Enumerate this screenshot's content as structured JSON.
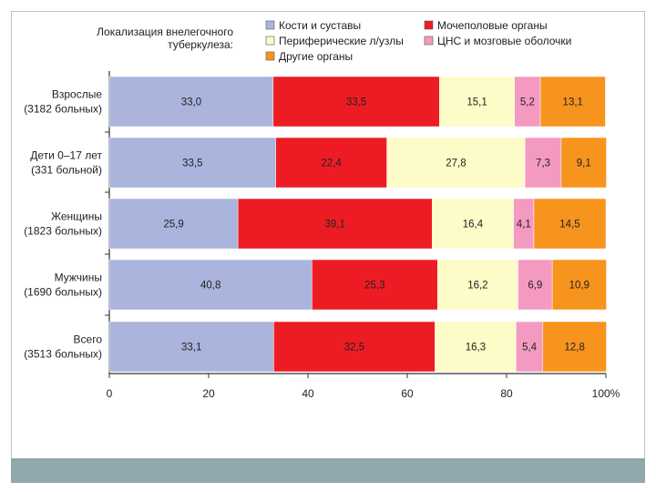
{
  "chart_data": {
    "type": "stacked-bar-horizontal",
    "title": "Локализация внелегочного туберкулеза:",
    "categories": [
      {
        "name": "Взрослые",
        "sub": "(3182 больных)"
      },
      {
        "name": "Дети 0–17 лет",
        "sub": "(331 больной)"
      },
      {
        "name": "Женщины",
        "sub": "(1823 больных)"
      },
      {
        "name": "Мужчины",
        "sub": "(1690 больных)"
      },
      {
        "name": "Всего",
        "sub": "(3513 больных)"
      }
    ],
    "series": [
      {
        "name": "Кости и суставы",
        "color": "#aab4dc",
        "values": [
          33.0,
          33.5,
          25.9,
          40.8,
          33.1
        ],
        "labels": [
          "33,0",
          "33,5",
          "25,9",
          "40,8",
          "33,1"
        ]
      },
      {
        "name": "Мочеполовые органы",
        "color": "#ed1c24",
        "values": [
          33.5,
          22.4,
          39.1,
          25.3,
          32.5
        ],
        "labels": [
          "33,5",
          "22,4",
          "39,1",
          "25,3",
          "32,5"
        ]
      },
      {
        "name": "Периферические л/узлы",
        "color": "#fdfbc7",
        "values": [
          15.1,
          27.8,
          16.4,
          16.2,
          16.3
        ],
        "labels": [
          "15,1",
          "27,8",
          "16,4",
          "16,2",
          "16,3"
        ]
      },
      {
        "name": "ЦНС и мозговые оболочки",
        "color": "#f49ac1",
        "values": [
          5.2,
          7.3,
          4.1,
          6.9,
          5.4
        ],
        "labels": [
          "5,2",
          "7,3",
          "4,1",
          "6,9",
          "5,4"
        ]
      },
      {
        "name": "Другие органы",
        "color": "#f7941d",
        "values": [
          13.1,
          9.1,
          14.5,
          10.9,
          12.8
        ],
        "labels": [
          "13,1",
          "9,1",
          "14,5",
          "10,9",
          "12,8"
        ]
      }
    ],
    "xticks": [
      "0",
      "20",
      "40",
      "60",
      "80",
      "100%"
    ],
    "xlim": [
      0,
      100
    ]
  }
}
